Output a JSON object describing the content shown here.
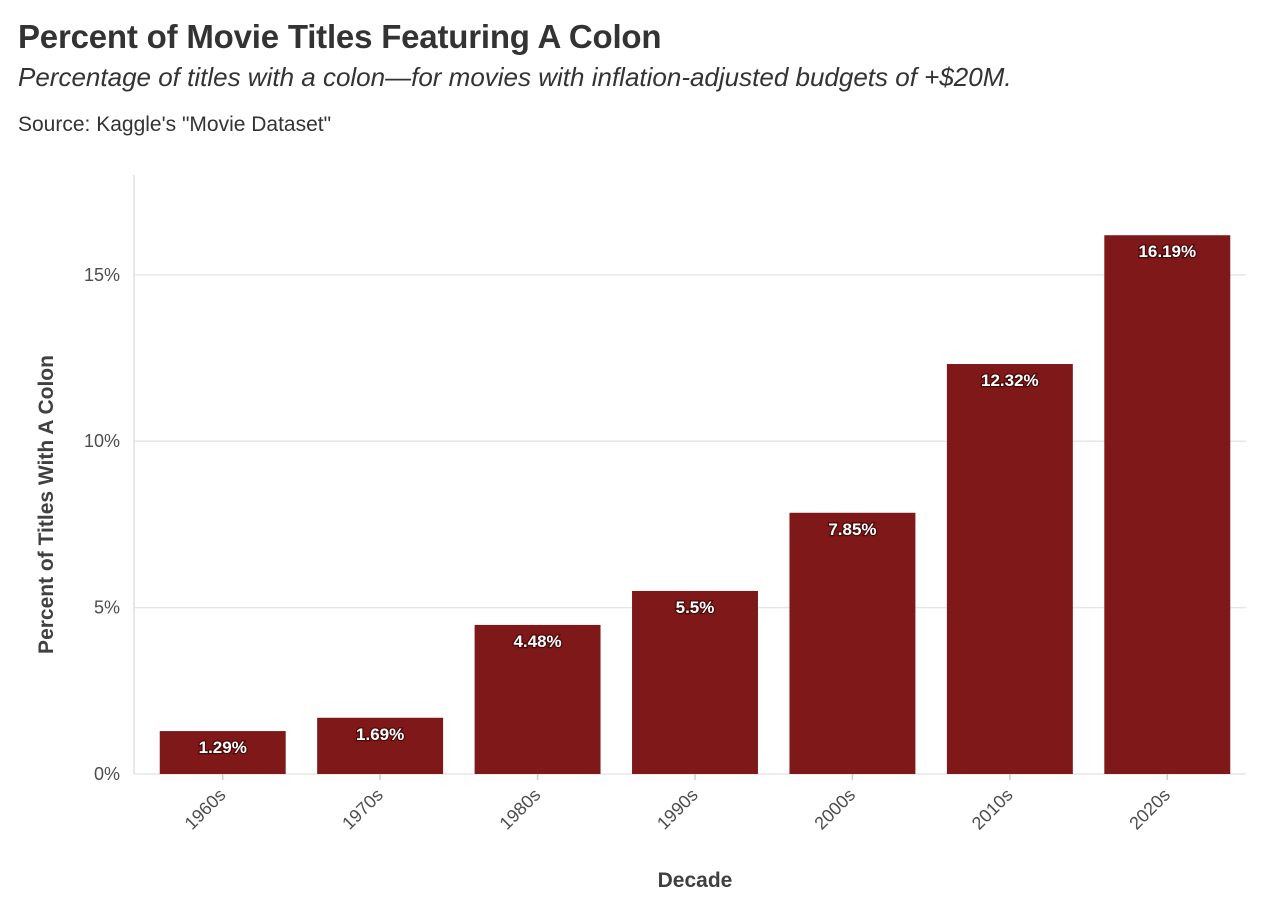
{
  "chart_data": {
    "type": "bar",
    "title": "Percent of Movie Titles Featuring A Colon",
    "subtitle": "Percentage of titles with a colon—for movies with inflation-adjusted budgets of +$20M.",
    "source": "Source: Kaggle's \"Movie Dataset\"",
    "xlabel": "Decade",
    "ylabel": "Percent of Titles With A Colon",
    "categories": [
      "1960s",
      "1970s",
      "1980s",
      "1990s",
      "2000s",
      "2010s",
      "2020s"
    ],
    "values": [
      1.29,
      1.69,
      4.48,
      5.5,
      7.85,
      12.32,
      16.19
    ],
    "data_labels": [
      "1.29%",
      "1.69%",
      "4.48%",
      "5.5%",
      "7.85%",
      "12.32%",
      "16.19%"
    ],
    "y_ticks": [
      0,
      5,
      10,
      15
    ],
    "y_tick_labels": [
      "0%",
      "5%",
      "10%",
      "15%"
    ],
    "ylim": [
      0,
      18
    ],
    "grid": true,
    "legend": "none",
    "colors": {
      "bar": "#7f1818",
      "grid": "#e6e6e6",
      "text": "#333333"
    }
  }
}
